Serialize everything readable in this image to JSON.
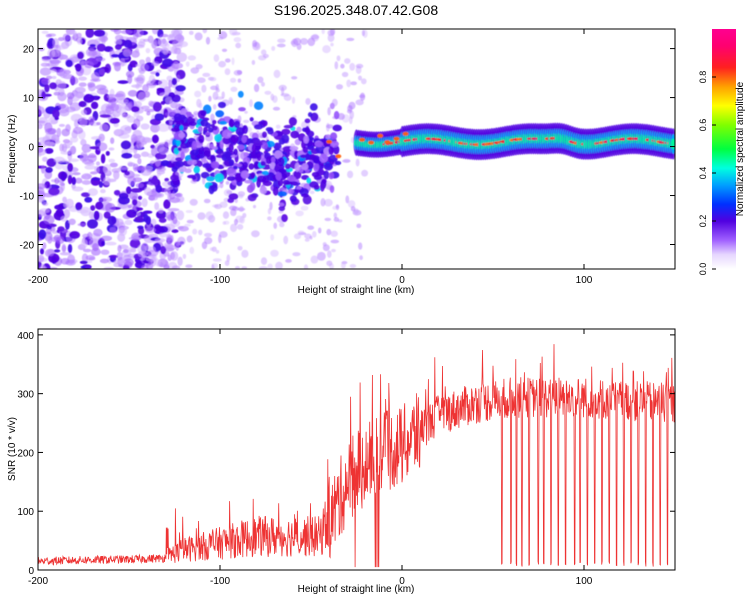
{
  "title": "S196.2025.348.07.42.G08",
  "chart_data": [
    {
      "type": "heatmap",
      "title": "S196.2025.348.07.42.G08",
      "xlabel": "Height of straight line (km)",
      "ylabel": "Frequency (Hz)",
      "xlim": [
        -200,
        150
      ],
      "ylim": [
        -25,
        24
      ],
      "x_ticks": [
        -200,
        -100,
        0,
        100
      ],
      "y_ticks": [
        -20,
        -10,
        0,
        10,
        20
      ],
      "colorbar": {
        "label": "Normalized spectral amplitude",
        "range": [
          0,
          1
        ],
        "ticks": [
          "0.0",
          "0.2",
          "0.4",
          "0.6",
          "0.8"
        ],
        "tick_values": [
          0,
          0.2,
          0.4,
          0.6,
          0.8
        ]
      },
      "features": {
        "noise_region_km": [
          -200,
          -130
        ],
        "transition_region_km": [
          -125,
          -35
        ],
        "signal_band_start_km": -25,
        "signal_band_center_hz": 1,
        "signal_band_halfwidth_hz": 2
      }
    },
    {
      "type": "line",
      "xlabel": "Height of straight line (km)",
      "ylabel": "SNR (10 * v/v)",
      "xlim": [
        -200,
        150
      ],
      "ylim": [
        0,
        410
      ],
      "x_ticks": [
        -200,
        -100,
        0,
        100
      ],
      "y_ticks": [
        0,
        100,
        200,
        300,
        400
      ],
      "series": [
        {
          "name": "SNR",
          "color": "#ee3333",
          "x": [
            -200,
            -175,
            -150,
            -130,
            -120,
            -100,
            -80,
            -60,
            -45,
            -40,
            -30,
            -20,
            -10,
            0,
            10,
            20,
            30,
            40,
            50,
            60,
            80,
            100,
            120,
            150
          ],
          "y": [
            15,
            17,
            18,
            20,
            30,
            40,
            50,
            50,
            50,
            80,
            150,
            180,
            200,
            210,
            235,
            260,
            270,
            280,
            285,
            290,
            290,
            290,
            285,
            280
          ]
        }
      ],
      "dropouts_x": [
        55,
        60,
        63,
        66,
        70,
        75,
        78,
        82,
        86,
        90,
        95,
        98,
        102,
        106,
        110,
        114,
        118,
        122,
        126,
        130,
        134,
        138,
        142,
        146
      ]
    }
  ]
}
